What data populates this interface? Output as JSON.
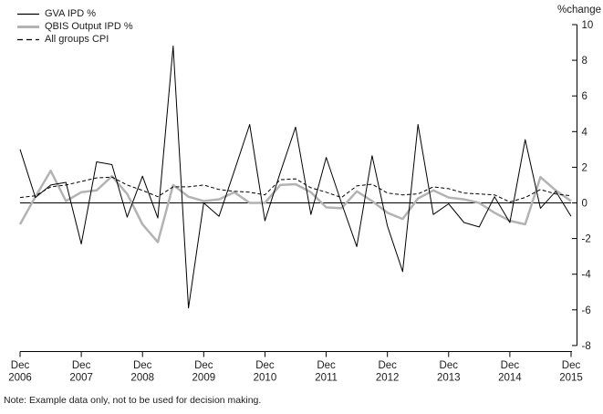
{
  "legend": {
    "items": [
      {
        "label": "GVA IPD %"
      },
      {
        "label": "QBIS Output IPD %"
      },
      {
        "label": "All groups CPI"
      }
    ]
  },
  "chart_data": {
    "type": "line",
    "ylabel": "%change",
    "ylim": [
      -8,
      10
    ],
    "ytick_step": 2,
    "y_ticks": [
      "10",
      "8",
      "6",
      "4",
      "2",
      "0",
      "-2",
      "-4",
      "-6",
      "-8"
    ],
    "x_tick_labels": [
      "Dec 2006",
      "Dec 2007",
      "Dec 2008",
      "Dec 2009",
      "Dec 2010",
      "Dec 2011",
      "Dec 2012",
      "Dec 2013",
      "Dec 2014",
      "Dec 2015"
    ],
    "x": [
      "2006-Q4",
      "2007-Q1",
      "2007-Q2",
      "2007-Q3",
      "2007-Q4",
      "2008-Q1",
      "2008-Q2",
      "2008-Q3",
      "2008-Q4",
      "2009-Q1",
      "2009-Q2",
      "2009-Q3",
      "2009-Q4",
      "2010-Q1",
      "2010-Q2",
      "2010-Q3",
      "2010-Q4",
      "2011-Q1",
      "2011-Q2",
      "2011-Q3",
      "2011-Q4",
      "2012-Q1",
      "2012-Q2",
      "2012-Q3",
      "2012-Q4",
      "2013-Q1",
      "2013-Q2",
      "2013-Q3",
      "2013-Q4",
      "2014-Q1",
      "2014-Q2",
      "2014-Q3",
      "2014-Q4",
      "2015-Q1",
      "2015-Q2",
      "2015-Q3",
      "2015-Q4"
    ],
    "series": [
      {
        "name": "GVA IPD %",
        "color": "#000000",
        "dash": "",
        "width": 1,
        "values": [
          3.0,
          0.3,
          1.0,
          1.15,
          -2.3,
          2.3,
          2.15,
          -0.8,
          1.5,
          -0.85,
          8.8,
          -5.9,
          0.0,
          -0.75,
          1.8,
          4.4,
          -1.0,
          1.7,
          4.25,
          -0.65,
          2.55,
          0.0,
          -2.45,
          2.65,
          -1.3,
          -3.85,
          4.4,
          -0.65,
          -0.05,
          -1.1,
          -1.35,
          0.35,
          -1.1,
          3.55,
          -0.3,
          0.65,
          -0.75
        ]
      },
      {
        "name": "QBIS Output IPD %",
        "color": "#b3b3b3",
        "dash": "",
        "width": 2.5,
        "values": [
          -1.2,
          0.35,
          1.8,
          0.1,
          0.6,
          0.7,
          1.5,
          0.5,
          -1.2,
          -2.2,
          1.0,
          0.35,
          0.1,
          0.2,
          0.6,
          0.0,
          0.0,
          1.0,
          1.05,
          0.6,
          -0.25,
          -0.3,
          0.65,
          0.1,
          -0.55,
          -0.9,
          0.25,
          0.7,
          0.3,
          0.2,
          0.0,
          -0.55,
          -1.0,
          -1.2,
          1.45,
          0.7,
          0.1
        ]
      },
      {
        "name": "All groups CPI",
        "color": "#000000",
        "dash": "4 2.5",
        "width": 1,
        "values": [
          0.3,
          0.4,
          0.9,
          1.0,
          1.2,
          1.4,
          1.45,
          1.0,
          0.7,
          0.35,
          0.9,
          0.9,
          1.0,
          0.75,
          0.65,
          0.6,
          0.45,
          1.3,
          1.35,
          0.85,
          0.6,
          0.3,
          0.95,
          1.05,
          0.55,
          0.45,
          0.5,
          0.9,
          0.8,
          0.55,
          0.5,
          0.45,
          0.05,
          0.3,
          0.75,
          0.5,
          0.4
        ]
      }
    ],
    "note": "Note: Example data only, not to be used for decision making."
  }
}
